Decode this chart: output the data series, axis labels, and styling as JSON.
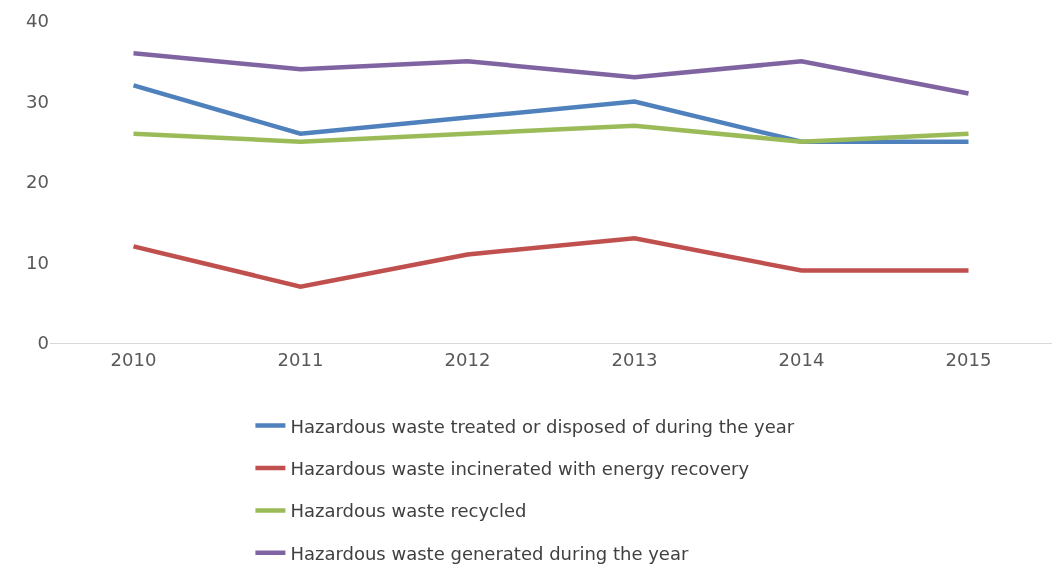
{
  "chart_data": {
    "type": "line",
    "categories": [
      "2010",
      "2011",
      "2012",
      "2013",
      "2014",
      "2015"
    ],
    "series": [
      {
        "name": "Hazardous waste treated or disposed of during the year",
        "color": "#4f81bd",
        "values": [
          32,
          26,
          28,
          30,
          25,
          25
        ]
      },
      {
        "name": "Hazardous waste incinerated with energy recovery",
        "color": "#c0504d",
        "values": [
          12,
          7,
          11,
          13,
          9,
          9
        ]
      },
      {
        "name": "Hazardous waste recycled",
        "color": "#9bbb59",
        "values": [
          26,
          25,
          26,
          27,
          25,
          26
        ]
      },
      {
        "name": "Hazardous waste generated during the year",
        "color": "#8064a2",
        "values": [
          36,
          34,
          35,
          33,
          35,
          31
        ]
      }
    ],
    "ylim": [
      0,
      40
    ],
    "yticks": [
      0,
      10,
      20,
      30,
      40
    ],
    "grid": false,
    "legend": "bottom",
    "marker": "none",
    "line_style": "solid"
  }
}
